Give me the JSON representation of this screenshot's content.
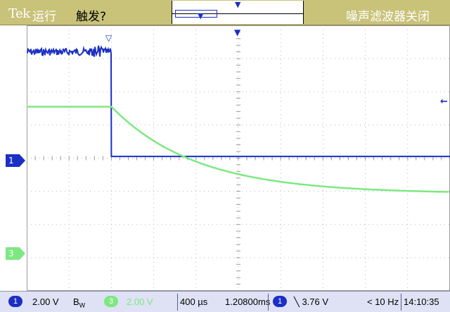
{
  "topbar": {
    "brand": "Tek",
    "run_state": "运行",
    "trigger_status": "触发?",
    "noise_filter": "噪声滤波器关闭"
  },
  "markers": {
    "ch1": "1",
    "ch3": "3"
  },
  "icons": {
    "trigger_position": "trigger-position-icon",
    "horizontal_delay": "delay-marker-icon",
    "trigger_level": "trigger-level-arrow-icon"
  },
  "readout": {
    "ch1_number": "1",
    "ch1_scale": "2.00 V",
    "ch1_bw": "B",
    "ch1_bw_sub": "W",
    "ch3_number": "3",
    "ch3_scale": "2.00 V",
    "timebase": "400 µs",
    "delay": "1.20800ms",
    "trig_source": "1",
    "trig_level": "╲ 3.76 V",
    "frequency": "< 10 Hz",
    "clock": "14:10:35"
  },
  "colors": {
    "topbar": "#c9c279",
    "ch1": "#1c2fc4",
    "ch3": "#7de882",
    "bottombar": "#dfe2f4"
  },
  "waveforms": {
    "ch1": {
      "label": "1",
      "pre_trigger_level_div": 3.2,
      "post_trigger_level_div": 0.05,
      "trigger_time_div": 2.0
    },
    "ch3": {
      "label": "3",
      "pre_trigger_level_div": 1.55,
      "decay_end_level_div": -0.6,
      "trigger_time_div": 2.0
    }
  }
}
